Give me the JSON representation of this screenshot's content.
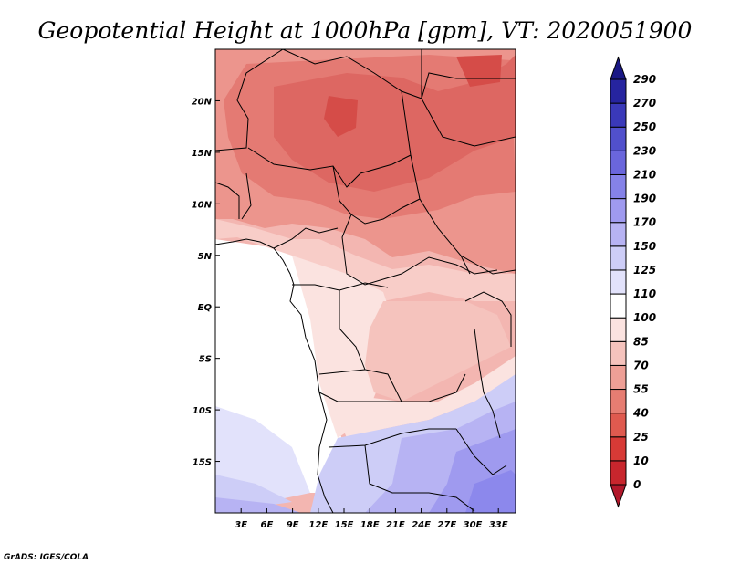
{
  "title": "Geopotential Height at 1000hPa [gpm], VT: 2020051900",
  "credit": "GrADS: IGES/COLA",
  "map": {
    "lon_range": [
      0,
      35
    ],
    "lat_range": [
      -20,
      25
    ],
    "lon_ticks": [
      {
        "value": 3,
        "label": "3E"
      },
      {
        "value": 6,
        "label": "6E"
      },
      {
        "value": 9,
        "label": "9E"
      },
      {
        "value": 12,
        "label": "12E"
      },
      {
        "value": 15,
        "label": "15E"
      },
      {
        "value": 18,
        "label": "18E"
      },
      {
        "value": 21,
        "label": "21E"
      },
      {
        "value": 24,
        "label": "24E"
      },
      {
        "value": 27,
        "label": "27E"
      },
      {
        "value": 30,
        "label": "30E"
      },
      {
        "value": 33,
        "label": "33E"
      }
    ],
    "lat_ticks": [
      {
        "value": 20,
        "label": "20N"
      },
      {
        "value": 15,
        "label": "15N"
      },
      {
        "value": 10,
        "label": "10N"
      },
      {
        "value": 5,
        "label": "5N"
      },
      {
        "value": 0,
        "label": "EQ"
      },
      {
        "value": -5,
        "label": "5S"
      },
      {
        "value": -10,
        "label": "10S"
      },
      {
        "value": -15,
        "label": "15S"
      }
    ]
  },
  "colorbar": {
    "levels": [
      0,
      10,
      25,
      40,
      55,
      70,
      85,
      100,
      110,
      125,
      150,
      170,
      190,
      210,
      230,
      250,
      270,
      290
    ],
    "colors": [
      "#b2182b",
      "#c8262d",
      "#d73a36",
      "#df5a4f",
      "#e67d72",
      "#ee9f96",
      "#f5c3bd",
      "#fbe3e0",
      "#ffffff",
      "#e2e2fb",
      "#cdcdf7",
      "#b7b3f3",
      "#9f9aef",
      "#8582e8",
      "#6a66dc",
      "#5150cc",
      "#3a39b9",
      "#26249f",
      "#1a1885"
    ]
  }
}
